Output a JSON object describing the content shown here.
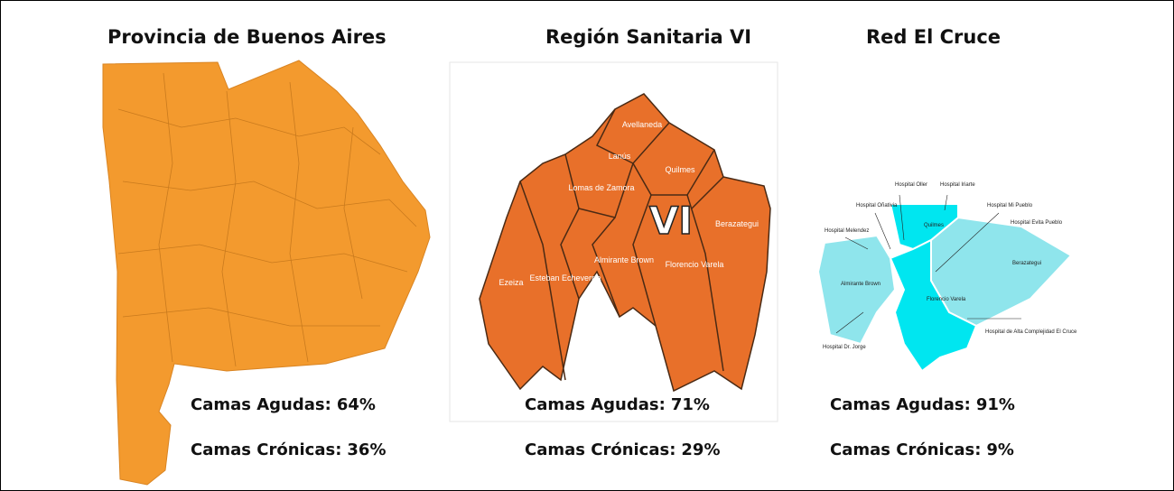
{
  "panels": [
    {
      "title": "Provincia de Buenos Aires",
      "stats": [
        {
          "label": "Camas Agudas:",
          "value": "64%"
        },
        {
          "label": "Camas Crónicas:",
          "value": "36%"
        }
      ]
    },
    {
      "title": "Región Sanitaria VI",
      "stats": [
        {
          "label": "Camas Agudas:",
          "value": "71%"
        },
        {
          "label": "Camas Crónicas:",
          "value": "29%"
        }
      ],
      "map_labels": [
        "Avellaneda",
        "Lanús",
        "Lomas de Zamora",
        "Quilmes",
        "VI",
        "Berazategui",
        "Ezeiza",
        "Esteban Echeverría",
        "Almirante Brown",
        "Florencio Varela"
      ]
    },
    {
      "title": "Red El Cruce",
      "stats": [
        {
          "label": "Camas Agudas:",
          "value": "91%"
        },
        {
          "label": "Camas Crónicas:",
          "value": "9%"
        }
      ],
      "map_labels": [
        "Hospital Oller",
        "Hospital Iriarte",
        "Hospital Oñativia",
        "Hospital Mi Pueblo",
        "Hospital Evita Pueblo",
        "Hospital Melendez",
        "Quilmes",
        "Berazategui",
        "Almirante Brown",
        "Florencio Varela",
        "Hospital de Alta Complejidad El Cruce",
        "Hospital Dr. Jorge"
      ]
    }
  ]
}
